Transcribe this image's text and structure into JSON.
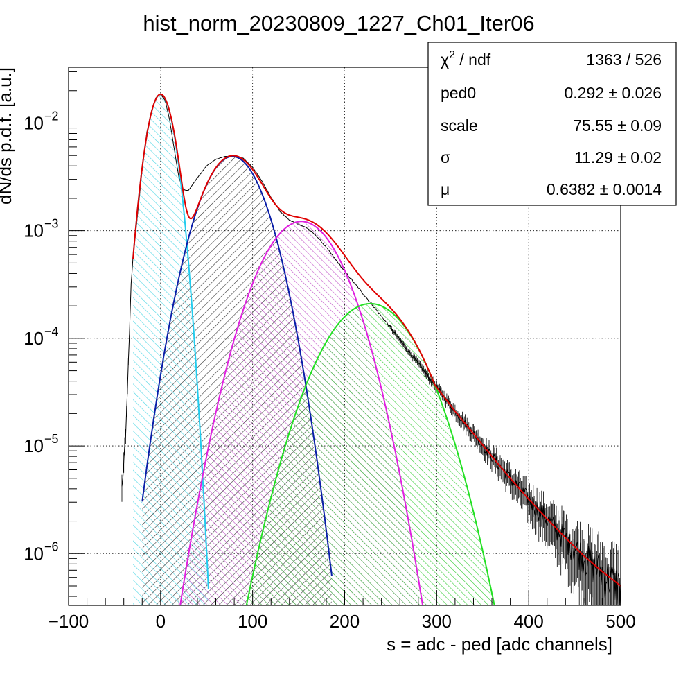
{
  "chart_data": {
    "type": "line",
    "title": "hist_norm_20230809_1227_Ch01_Iter06",
    "xlabel": "s = adc - ped [adc channels]",
    "ylabel": "dN/ds p.d.f. [a.u.]",
    "xlim": [
      -100,
      500
    ],
    "ylim": [
      3.3e-07,
      0.033
    ],
    "yscale": "log",
    "grid": true,
    "x_ticks": [
      {
        "value": -100,
        "label": "−100"
      },
      {
        "value": 0,
        "label": "0"
      },
      {
        "value": 100,
        "label": "100"
      },
      {
        "value": 200,
        "label": "200"
      },
      {
        "value": 300,
        "label": "300"
      },
      {
        "value": 400,
        "label": "400"
      },
      {
        "value": 500,
        "label": "500"
      }
    ],
    "y_ticks": [
      {
        "value": 0.01,
        "base": "10",
        "exp": "−2"
      },
      {
        "value": 0.001,
        "base": "10",
        "exp": "−3"
      },
      {
        "value": 0.0001,
        "base": "10",
        "exp": "−4"
      },
      {
        "value": 1e-05,
        "base": "10",
        "exp": "−5"
      },
      {
        "value": 1e-06,
        "base": "10",
        "exp": "−6"
      }
    ],
    "stats_box": {
      "position": "top-right",
      "rows": [
        {
          "name_main": "χ",
          "name_sup": "2",
          "name_rest": " / ndf",
          "value": "1363 / 526"
        },
        {
          "name_main": "ped0",
          "name_sup": "",
          "name_rest": "",
          "value": "0.292 ± 0.026"
        },
        {
          "name_main": "scale",
          "name_sup": "",
          "name_rest": "",
          "value": "75.55 ± 0.09"
        },
        {
          "name_main": "σ",
          "name_sup": "",
          "name_rest": "",
          "value": "11.29 ± 0.02"
        },
        {
          "name_main": "μ",
          "name_sup": "",
          "name_rest": "",
          "value": "0.6382 ± 0.0014"
        }
      ]
    },
    "components": [
      {
        "color": "#22ccee",
        "fill": "#66dde8",
        "mean": 0,
        "peak": 0.0185,
        "sigma": 11.3,
        "range": [
          -30,
          52
        ]
      },
      {
        "color": "#0a1ea8",
        "fill": "#222222",
        "mean": 78,
        "peak": 0.0049,
        "sigma": 25.5,
        "range": [
          -20,
          186
        ]
      },
      {
        "color": "#e020e0",
        "fill": "#c040c0",
        "mean": 153,
        "peak": 0.00122,
        "sigma": 32.5,
        "range": [
          20,
          292
        ]
      },
      {
        "color": "#22e022",
        "fill": "#22cc22",
        "mean": 228,
        "peak": 0.00021,
        "sigma": 37.5,
        "range": [
          78,
          378
        ]
      }
    ],
    "fit_color": "#e00000",
    "fit_range": [
      -30,
      500
    ],
    "histogram": {
      "color": "#000000",
      "range": [
        -45,
        500
      ],
      "binwidth": 1,
      "points": [
        [
          -42,
          4e-06
        ],
        [
          -38,
          1.2e-05
        ],
        [
          -36,
          3.5e-05
        ],
        [
          -34,
          0.0001
        ],
        [
          -32,
          0.00032
        ],
        [
          -30,
          0.00056
        ],
        [
          -25,
          0.0014
        ],
        [
          -20,
          0.0037
        ],
        [
          -15,
          0.0082
        ],
        [
          -10,
          0.013
        ],
        [
          -5,
          0.0172
        ],
        [
          0,
          0.0185
        ],
        [
          5,
          0.0162
        ],
        [
          10,
          0.0105
        ],
        [
          15,
          0.0056
        ],
        [
          20,
          0.0031
        ],
        [
          25,
          0.0024
        ],
        [
          30,
          0.00235
        ],
        [
          40,
          0.0031
        ],
        [
          50,
          0.004
        ],
        [
          60,
          0.0046
        ],
        [
          70,
          0.0049
        ],
        [
          80,
          0.00495
        ],
        [
          90,
          0.0047
        ],
        [
          100,
          0.0039
        ],
        [
          110,
          0.0029
        ],
        [
          120,
          0.00205
        ],
        [
          130,
          0.0015
        ],
        [
          140,
          0.00125
        ],
        [
          150,
          0.00115
        ],
        [
          160,
          0.00105
        ],
        [
          170,
          0.00088
        ],
        [
          180,
          0.0007
        ],
        [
          190,
          0.00054
        ],
        [
          200,
          0.00042
        ],
        [
          210,
          0.00033
        ],
        [
          220,
          0.00026
        ],
        [
          230,
          0.000205
        ],
        [
          240,
          0.00016
        ],
        [
          250,
          0.000125
        ],
        [
          260,
          9.6e-05
        ],
        [
          270,
          7.5e-05
        ],
        [
          280,
          5.8e-05
        ],
        [
          290,
          4.5e-05
        ],
        [
          300,
          3.5e-05
        ],
        [
          320,
          2.1e-05
        ],
        [
          340,
          1.3e-05
        ],
        [
          360,
          8e-06
        ],
        [
          380,
          5e-06
        ],
        [
          400,
          3.2e-06
        ],
        [
          420,
          2.1e-06
        ],
        [
          440,
          1.4e-06
        ],
        [
          460,
          9.5e-07
        ],
        [
          480,
          6.8e-07
        ],
        [
          500,
          5e-07
        ]
      ]
    }
  }
}
